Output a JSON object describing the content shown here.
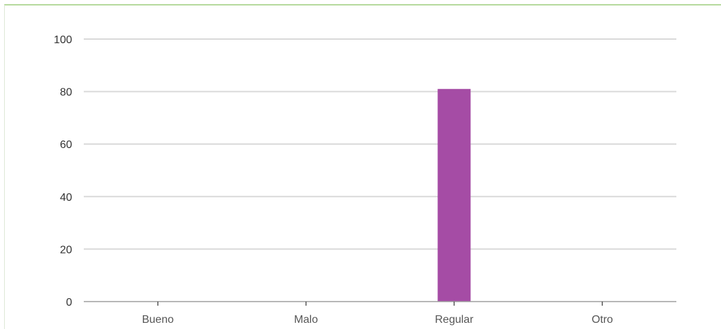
{
  "colors": {
    "bar": "#a54ca5",
    "grid": "#d9d9d9",
    "panel_border": "#b5d99c"
  },
  "chart_data": {
    "type": "bar",
    "categories": [
      "Bueno",
      "Malo",
      "Regular",
      "Otro"
    ],
    "values": [
      0,
      0,
      81,
      0
    ],
    "title": "",
    "xlabel": "",
    "ylabel": "",
    "ylim": [
      0,
      100
    ],
    "yticks": [
      "0",
      "20",
      "40",
      "60",
      "80",
      "100"
    ],
    "grid": true,
    "legend": "none"
  }
}
